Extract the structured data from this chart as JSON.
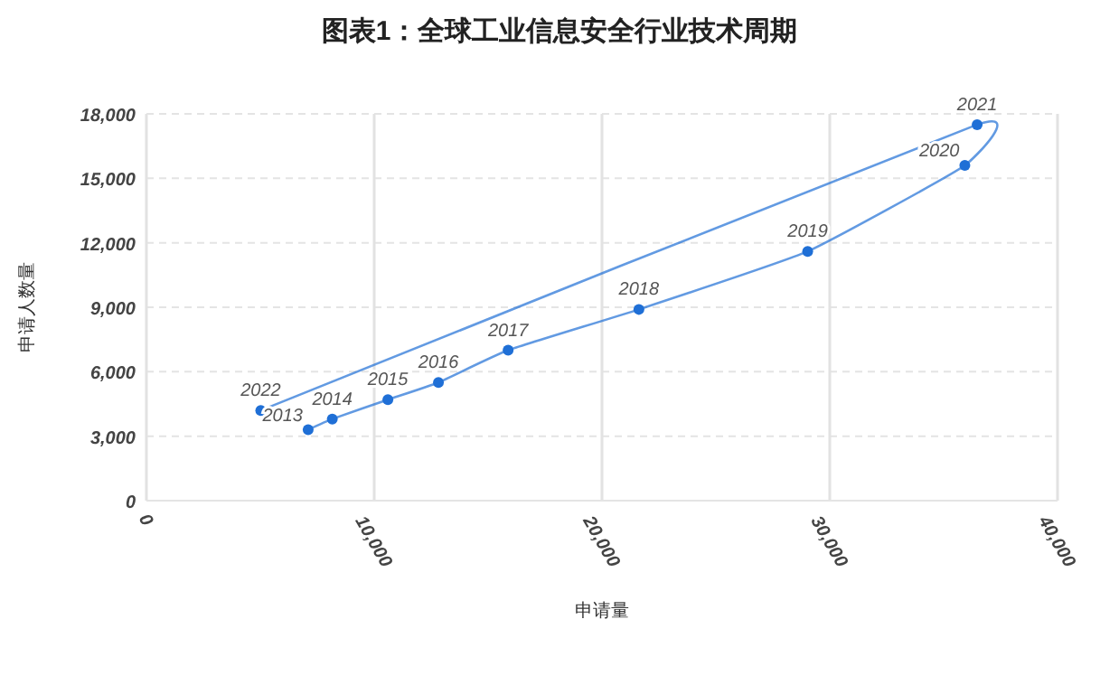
{
  "chart_data": {
    "type": "line",
    "title": "图表1：全球工业信息安全行业技术周期",
    "xlabel": "申请量",
    "ylabel": "申请人数量",
    "x": [
      7100,
      8160,
      10600,
      12820,
      15880,
      21620,
      29030,
      35930,
      36470,
      5020
    ],
    "series": [
      {
        "color": "#1f6fd6",
        "values": [
          3300,
          3800,
          4700,
          5500,
          7000,
          8900,
          11600,
          15600,
          17500,
          4200
        ]
      }
    ],
    "value_labels": [
      "2013",
      "2014",
      "2015",
      "2016",
      "2017",
      "2018",
      "2019",
      "2020",
      "2021",
      "2022"
    ],
    "xlim": [
      0,
      40000
    ],
    "xticks": [
      {
        "value": 0,
        "label": "0"
      },
      {
        "value": 10000,
        "label": "10,000"
      },
      {
        "value": 20000,
        "label": "20,000"
      },
      {
        "value": 30000,
        "label": "30,000"
      },
      {
        "value": 40000,
        "label": "40,000"
      }
    ],
    "ylim": [
      0,
      18000
    ],
    "yticks": [
      {
        "value": 0,
        "label": "0"
      },
      {
        "value": 3000,
        "label": "3,000"
      },
      {
        "value": 6000,
        "label": "6,000"
      },
      {
        "value": 9000,
        "label": "9,000"
      },
      {
        "value": 12000,
        "label": "12,000"
      },
      {
        "value": 15000,
        "label": "15,000"
      },
      {
        "value": 18000,
        "label": "18,000"
      }
    ],
    "grid": true,
    "marker": "circle",
    "line_style": "solid"
  }
}
